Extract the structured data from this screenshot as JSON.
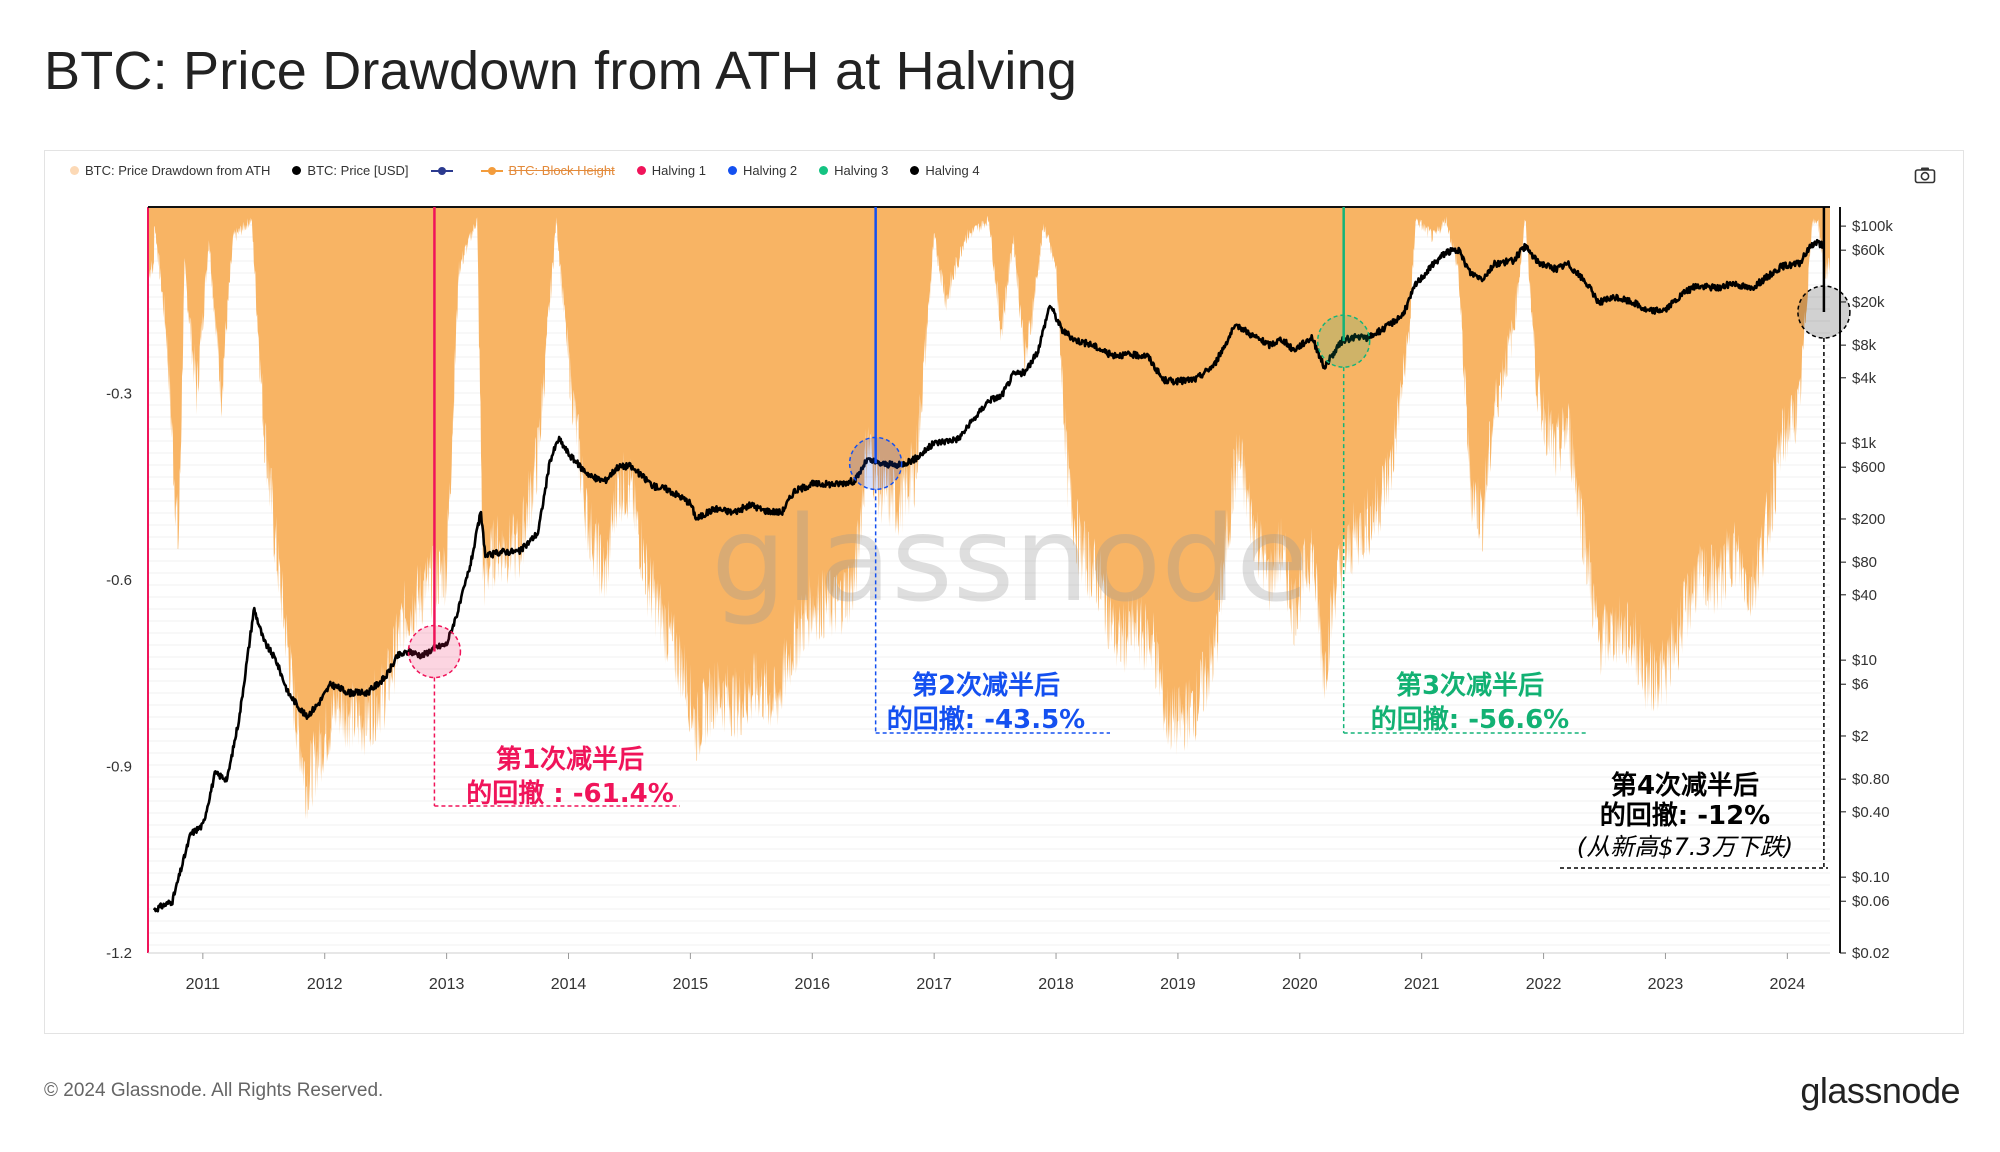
{
  "title": "BTC: Price Drawdown from ATH at Halving",
  "footer": {
    "copyright": "© 2024 Glassnode. All Rights Reserved.",
    "logo": "glassnode"
  },
  "watermark": "glassnode",
  "legend": [
    {
      "label": "BTC: Price Drawdown from ATH",
      "color": "#fcd9b6",
      "kind": "dot",
      "disabled": false
    },
    {
      "label": "BTC: Price [USD]",
      "color": "#000000",
      "kind": "dot",
      "disabled": false
    },
    {
      "label": "",
      "color": "#2b3a8f",
      "kind": "line",
      "disabled": false
    },
    {
      "label": "BTC: Block Height",
      "color": "#f39c3c",
      "kind": "line",
      "disabled": true
    },
    {
      "label": "Halving 1",
      "color": "#f0145a",
      "kind": "dot",
      "disabled": false
    },
    {
      "label": "Halving 2",
      "color": "#1450f0",
      "kind": "dot",
      "disabled": false
    },
    {
      "label": "Halving 3",
      "color": "#14c382",
      "kind": "dot",
      "disabled": false
    },
    {
      "label": "Halving 4",
      "color": "#000000",
      "kind": "dot",
      "disabled": false
    }
  ],
  "icons": {
    "camera": "camera-icon"
  },
  "colors": {
    "drawdown_fill": "#f8b464",
    "price_line": "#000000",
    "halving1": "#f0145a",
    "halving2": "#1450f0",
    "halving3": "#14b478",
    "halving4": "#000000"
  },
  "chart_data": {
    "type": "area",
    "x_ticks": [
      "2011",
      "2012",
      "2013",
      "2014",
      "2015",
      "2016",
      "2017",
      "2018",
      "2019",
      "2020",
      "2021",
      "2022",
      "2023",
      "2024"
    ],
    "left_axis": {
      "ticks": [
        -0.3,
        -0.6,
        -0.9,
        -1.2
      ],
      "tick_labels": [
        "-0.3",
        "-0.6",
        "-0.9",
        "-1.2"
      ],
      "range": [
        -1.2,
        0
      ]
    },
    "right_axis": {
      "scale": "log",
      "tick_values": [
        100000,
        60000,
        20000,
        8000,
        4000,
        1000,
        600,
        200,
        80,
        40,
        10,
        6,
        2,
        0.8,
        0.4,
        0.1,
        0.06,
        0.02
      ],
      "tick_labels": [
        "$100k",
        "$60k",
        "$20k",
        "$8k",
        "$4k",
        "$1k",
        "$600",
        "$200",
        "$80",
        "$40",
        "$10",
        "$6",
        "$2",
        "$0.80",
        "$0.40",
        "$0.10",
        "$0.06",
        "$0.02"
      ]
    },
    "price_series": {
      "name": "BTC: Price [USD]",
      "points": [
        [
          2010.6,
          0.05
        ],
        [
          2010.75,
          0.06
        ],
        [
          2010.9,
          0.25
        ],
        [
          2011.0,
          0.3
        ],
        [
          2011.1,
          0.9
        ],
        [
          2011.2,
          0.8
        ],
        [
          2011.3,
          3
        ],
        [
          2011.42,
          30
        ],
        [
          2011.5,
          15
        ],
        [
          2011.6,
          10
        ],
        [
          2011.7,
          5
        ],
        [
          2011.85,
          3
        ],
        [
          2011.95,
          4
        ],
        [
          2012.05,
          6
        ],
        [
          2012.2,
          5
        ],
        [
          2012.35,
          5
        ],
        [
          2012.5,
          7
        ],
        [
          2012.6,
          11
        ],
        [
          2012.7,
          12
        ],
        [
          2012.8,
          11
        ],
        [
          2012.9,
          13
        ],
        [
          2013.0,
          14
        ],
        [
          2013.1,
          30
        ],
        [
          2013.2,
          80
        ],
        [
          2013.28,
          230
        ],
        [
          2013.32,
          90
        ],
        [
          2013.45,
          100
        ],
        [
          2013.6,
          100
        ],
        [
          2013.75,
          150
        ],
        [
          2013.85,
          700
        ],
        [
          2013.92,
          1100
        ],
        [
          2014.0,
          800
        ],
        [
          2014.1,
          600
        ],
        [
          2014.2,
          480
        ],
        [
          2014.3,
          450
        ],
        [
          2014.4,
          600
        ],
        [
          2014.5,
          620
        ],
        [
          2014.6,
          500
        ],
        [
          2014.7,
          400
        ],
        [
          2014.8,
          380
        ],
        [
          2014.9,
          330
        ],
        [
          2015.0,
          280
        ],
        [
          2015.05,
          200
        ],
        [
          2015.2,
          250
        ],
        [
          2015.35,
          230
        ],
        [
          2015.5,
          270
        ],
        [
          2015.6,
          240
        ],
        [
          2015.75,
          230
        ],
        [
          2015.85,
          360
        ],
        [
          2016.0,
          420
        ],
        [
          2016.2,
          420
        ],
        [
          2016.35,
          450
        ],
        [
          2016.45,
          700
        ],
        [
          2016.55,
          650
        ],
        [
          2016.7,
          620
        ],
        [
          2016.85,
          720
        ],
        [
          2017.0,
          1000
        ],
        [
          2017.2,
          1100
        ],
        [
          2017.35,
          1800
        ],
        [
          2017.45,
          2500
        ],
        [
          2017.55,
          2700
        ],
        [
          2017.65,
          4300
        ],
        [
          2017.75,
          4500
        ],
        [
          2017.85,
          7000
        ],
        [
          2017.95,
          19000
        ],
        [
          2018.05,
          11000
        ],
        [
          2018.15,
          9000
        ],
        [
          2018.3,
          8000
        ],
        [
          2018.45,
          6500
        ],
        [
          2018.6,
          6500
        ],
        [
          2018.75,
          6400
        ],
        [
          2018.88,
          3800
        ],
        [
          2019.0,
          3700
        ],
        [
          2019.15,
          3900
        ],
        [
          2019.3,
          5300
        ],
        [
          2019.45,
          11000
        ],
        [
          2019.5,
          12000
        ],
        [
          2019.6,
          10000
        ],
        [
          2019.75,
          8000
        ],
        [
          2019.85,
          9100
        ],
        [
          2019.95,
          7200
        ],
        [
          2020.1,
          9500
        ],
        [
          2020.2,
          5000
        ],
        [
          2020.35,
          8800
        ],
        [
          2020.45,
          9500
        ],
        [
          2020.55,
          9300
        ],
        [
          2020.7,
          11500
        ],
        [
          2020.85,
          15500
        ],
        [
          2020.95,
          29000
        ],
        [
          2021.1,
          45000
        ],
        [
          2021.2,
          58000
        ],
        [
          2021.3,
          60000
        ],
        [
          2021.4,
          37000
        ],
        [
          2021.5,
          33000
        ],
        [
          2021.6,
          45000
        ],
        [
          2021.75,
          48000
        ],
        [
          2021.85,
          65000
        ],
        [
          2021.95,
          47000
        ],
        [
          2022.1,
          40000
        ],
        [
          2022.2,
          45000
        ],
        [
          2022.35,
          30000
        ],
        [
          2022.45,
          20000
        ],
        [
          2022.6,
          22000
        ],
        [
          2022.75,
          19500
        ],
        [
          2022.85,
          16500
        ],
        [
          2023.0,
          17000
        ],
        [
          2023.15,
          24000
        ],
        [
          2023.25,
          28000
        ],
        [
          2023.45,
          27000
        ],
        [
          2023.55,
          30000
        ],
        [
          2023.7,
          26500
        ],
        [
          2023.85,
          35000
        ],
        [
          2023.95,
          42500
        ],
        [
          2024.1,
          45000
        ],
        [
          2024.2,
          68000
        ],
        [
          2024.25,
          71000
        ],
        [
          2024.3,
          64000
        ]
      ]
    },
    "drawdown_series": {
      "name": "BTC: Price Drawdown from ATH",
      "points": [
        [
          2010.6,
          -0.02
        ],
        [
          2010.7,
          -0.2
        ],
        [
          2010.8,
          -0.55
        ],
        [
          2010.85,
          -0.1
        ],
        [
          2010.95,
          -0.3
        ],
        [
          2011.05,
          -0.05
        ],
        [
          2011.15,
          -0.3
        ],
        [
          2011.25,
          -0.05
        ],
        [
          2011.4,
          -0.02
        ],
        [
          2011.5,
          -0.35
        ],
        [
          2011.6,
          -0.55
        ],
        [
          2011.75,
          -0.8
        ],
        [
          2011.85,
          -0.93
        ],
        [
          2011.95,
          -0.88
        ],
        [
          2012.1,
          -0.8
        ],
        [
          2012.3,
          -0.83
        ],
        [
          2012.5,
          -0.78
        ],
        [
          2012.65,
          -0.66
        ],
        [
          2012.8,
          -0.62
        ],
        [
          2013.0,
          -0.58
        ],
        [
          2013.1,
          -0.1
        ],
        [
          2013.25,
          -0.02
        ],
        [
          2013.3,
          -0.6
        ],
        [
          2013.4,
          -0.55
        ],
        [
          2013.6,
          -0.55
        ],
        [
          2013.75,
          -0.4
        ],
        [
          2013.9,
          -0.02
        ],
        [
          2014.0,
          -0.25
        ],
        [
          2014.15,
          -0.5
        ],
        [
          2014.3,
          -0.6
        ],
        [
          2014.4,
          -0.45
        ],
        [
          2014.5,
          -0.45
        ],
        [
          2014.65,
          -0.6
        ],
        [
          2014.8,
          -0.68
        ],
        [
          2014.95,
          -0.75
        ],
        [
          2015.05,
          -0.84
        ],
        [
          2015.2,
          -0.78
        ],
        [
          2015.4,
          -0.8
        ],
        [
          2015.55,
          -0.77
        ],
        [
          2015.7,
          -0.8
        ],
        [
          2015.85,
          -0.7
        ],
        [
          2016.0,
          -0.64
        ],
        [
          2016.2,
          -0.64
        ],
        [
          2016.35,
          -0.6
        ],
        [
          2016.45,
          -0.38
        ],
        [
          2016.55,
          -0.45
        ],
        [
          2016.7,
          -0.48
        ],
        [
          2016.85,
          -0.42
        ],
        [
          2017.0,
          -0.05
        ],
        [
          2017.1,
          -0.15
        ],
        [
          2017.25,
          -0.05
        ],
        [
          2017.45,
          -0.02
        ],
        [
          2017.55,
          -0.2
        ],
        [
          2017.65,
          -0.05
        ],
        [
          2017.75,
          -0.25
        ],
        [
          2017.9,
          -0.03
        ],
        [
          2018.0,
          -0.1
        ],
        [
          2018.1,
          -0.45
        ],
        [
          2018.2,
          -0.55
        ],
        [
          2018.35,
          -0.6
        ],
        [
          2018.5,
          -0.7
        ],
        [
          2018.65,
          -0.68
        ],
        [
          2018.8,
          -0.7
        ],
        [
          2018.9,
          -0.82
        ],
        [
          2019.0,
          -0.83
        ],
        [
          2019.15,
          -0.8
        ],
        [
          2019.3,
          -0.72
        ],
        [
          2019.45,
          -0.45
        ],
        [
          2019.5,
          -0.4
        ],
        [
          2019.6,
          -0.5
        ],
        [
          2019.75,
          -0.6
        ],
        [
          2019.85,
          -0.55
        ],
        [
          2019.95,
          -0.65
        ],
        [
          2020.1,
          -0.55
        ],
        [
          2020.2,
          -0.75
        ],
        [
          2020.3,
          -0.6
        ],
        [
          2020.45,
          -0.53
        ],
        [
          2020.6,
          -0.5
        ],
        [
          2020.75,
          -0.42
        ],
        [
          2020.9,
          -0.2
        ],
        [
          2020.95,
          -0.02
        ],
        [
          2021.1,
          -0.05
        ],
        [
          2021.2,
          -0.02
        ],
        [
          2021.3,
          -0.1
        ],
        [
          2021.4,
          -0.45
        ],
        [
          2021.5,
          -0.5
        ],
        [
          2021.6,
          -0.32
        ],
        [
          2021.75,
          -0.2
        ],
        [
          2021.85,
          -0.02
        ],
        [
          2021.95,
          -0.3
        ],
        [
          2022.1,
          -0.4
        ],
        [
          2022.2,
          -0.35
        ],
        [
          2022.35,
          -0.55
        ],
        [
          2022.45,
          -0.7
        ],
        [
          2022.6,
          -0.68
        ],
        [
          2022.75,
          -0.7
        ],
        [
          2022.85,
          -0.76
        ],
        [
          2023.0,
          -0.75
        ],
        [
          2023.15,
          -0.66
        ],
        [
          2023.25,
          -0.6
        ],
        [
          2023.45,
          -0.6
        ],
        [
          2023.55,
          -0.55
        ],
        [
          2023.7,
          -0.62
        ],
        [
          2023.85,
          -0.5
        ],
        [
          2023.95,
          -0.38
        ],
        [
          2024.1,
          -0.32
        ],
        [
          2024.2,
          -0.03
        ],
        [
          2024.25,
          -0.02
        ],
        [
          2024.3,
          -0.1
        ]
      ]
    },
    "halvings": [
      {
        "name": "Halving 1",
        "x": 2012.9,
        "color": "#f0145a",
        "marker_price": 12,
        "label_line1": "第1次减半后",
        "label_line2": "的回撤 : -61.4%"
      },
      {
        "name": "Halving 2",
        "x": 2016.52,
        "color": "#1450f0",
        "marker_price": 650,
        "label_line1": "第2次减半后",
        "label_line2": "的回撤: -43.5%"
      },
      {
        "name": "Halving 3",
        "x": 2020.36,
        "color": "#14b478",
        "marker_price": 8700,
        "label_line1": "第3次减半后",
        "label_line2": "的回撤: -56.6%"
      },
      {
        "name": "Halving 4",
        "x": 2024.3,
        "color": "#000000",
        "marker_price": 64000,
        "label_line1": "第4次减半后",
        "label_line2": "的回撤: -12%",
        "label_line3": "(从新高$7.3万下跌)"
      }
    ]
  }
}
